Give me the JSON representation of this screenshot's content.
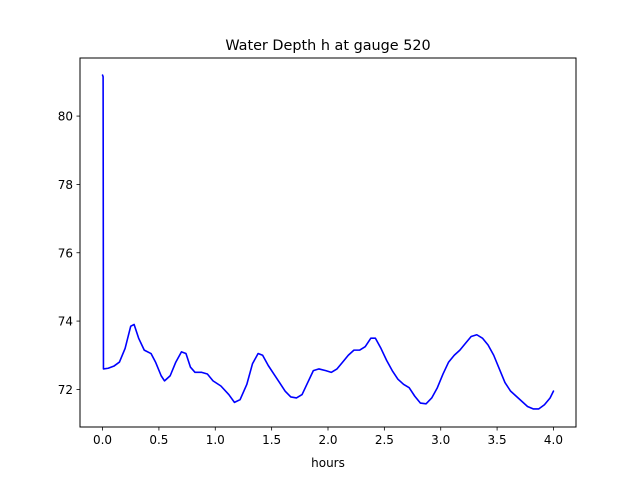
{
  "chart_data": {
    "type": "line",
    "title": "Water Depth h at gauge 520",
    "xlabel": "hours",
    "ylabel": "",
    "xlim": [
      -0.2,
      4.2
    ],
    "ylim": [
      70.9,
      81.7
    ],
    "x_ticks": [
      0.0,
      0.5,
      1.0,
      1.5,
      2.0,
      2.5,
      3.0,
      3.5,
      4.0
    ],
    "x_tick_labels": [
      "0.0",
      "0.5",
      "1.0",
      "1.5",
      "2.0",
      "2.5",
      "3.0",
      "3.5",
      "4.0"
    ],
    "y_ticks": [
      72,
      74,
      76,
      78,
      80
    ],
    "y_tick_labels": [
      "72",
      "74",
      "76",
      "78",
      "80"
    ],
    "grid": false,
    "series": [
      {
        "color": "#0000ff",
        "points": [
          [
            0.0,
            81.2
          ],
          [
            0.005,
            81.15
          ],
          [
            0.008,
            72.6
          ],
          [
            0.05,
            72.62
          ],
          [
            0.1,
            72.68
          ],
          [
            0.15,
            72.8
          ],
          [
            0.2,
            73.2
          ],
          [
            0.25,
            73.85
          ],
          [
            0.28,
            73.9
          ],
          [
            0.32,
            73.5
          ],
          [
            0.37,
            73.15
          ],
          [
            0.43,
            73.05
          ],
          [
            0.47,
            72.8
          ],
          [
            0.52,
            72.4
          ],
          [
            0.55,
            72.25
          ],
          [
            0.6,
            72.4
          ],
          [
            0.65,
            72.8
          ],
          [
            0.7,
            73.1
          ],
          [
            0.74,
            73.05
          ],
          [
            0.78,
            72.65
          ],
          [
            0.82,
            72.5
          ],
          [
            0.88,
            72.5
          ],
          [
            0.93,
            72.45
          ],
          [
            0.98,
            72.25
          ],
          [
            1.05,
            72.1
          ],
          [
            1.12,
            71.85
          ],
          [
            1.17,
            71.62
          ],
          [
            1.22,
            71.7
          ],
          [
            1.28,
            72.15
          ],
          [
            1.33,
            72.75
          ],
          [
            1.38,
            73.05
          ],
          [
            1.42,
            73.0
          ],
          [
            1.47,
            72.7
          ],
          [
            1.52,
            72.45
          ],
          [
            1.57,
            72.2
          ],
          [
            1.62,
            71.95
          ],
          [
            1.67,
            71.78
          ],
          [
            1.72,
            71.75
          ],
          [
            1.77,
            71.85
          ],
          [
            1.82,
            72.2
          ],
          [
            1.87,
            72.55
          ],
          [
            1.92,
            72.6
          ],
          [
            1.98,
            72.55
          ],
          [
            2.03,
            72.5
          ],
          [
            2.08,
            72.6
          ],
          [
            2.13,
            72.8
          ],
          [
            2.18,
            73.0
          ],
          [
            2.23,
            73.15
          ],
          [
            2.28,
            73.15
          ],
          [
            2.33,
            73.25
          ],
          [
            2.38,
            73.5
          ],
          [
            2.42,
            73.5
          ],
          [
            2.47,
            73.2
          ],
          [
            2.52,
            72.85
          ],
          [
            2.57,
            72.55
          ],
          [
            2.62,
            72.3
          ],
          [
            2.67,
            72.15
          ],
          [
            2.72,
            72.05
          ],
          [
            2.77,
            71.8
          ],
          [
            2.82,
            71.6
          ],
          [
            2.87,
            71.58
          ],
          [
            2.92,
            71.75
          ],
          [
            2.97,
            72.05
          ],
          [
            3.02,
            72.45
          ],
          [
            3.07,
            72.8
          ],
          [
            3.12,
            73.0
          ],
          [
            3.17,
            73.15
          ],
          [
            3.22,
            73.35
          ],
          [
            3.27,
            73.55
          ],
          [
            3.32,
            73.6
          ],
          [
            3.37,
            73.5
          ],
          [
            3.42,
            73.3
          ],
          [
            3.47,
            73.0
          ],
          [
            3.52,
            72.6
          ],
          [
            3.57,
            72.2
          ],
          [
            3.62,
            71.95
          ],
          [
            3.67,
            71.8
          ],
          [
            3.72,
            71.65
          ],
          [
            3.77,
            71.5
          ],
          [
            3.82,
            71.43
          ],
          [
            3.87,
            71.43
          ],
          [
            3.92,
            71.55
          ],
          [
            3.97,
            71.75
          ],
          [
            4.0,
            71.95
          ]
        ]
      }
    ]
  }
}
